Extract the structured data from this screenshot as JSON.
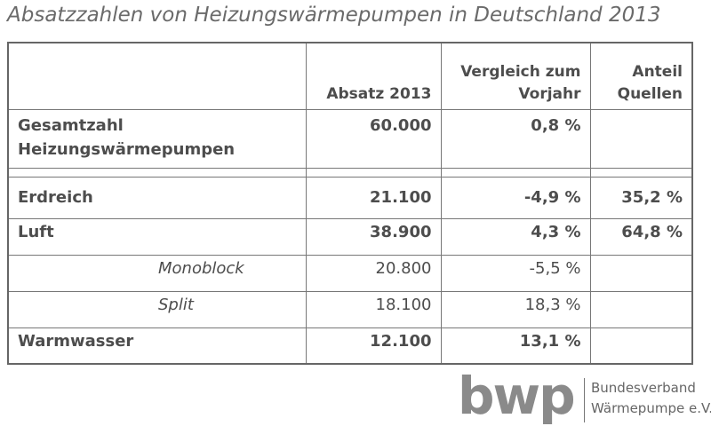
{
  "title": "Absatzzahlen von Heizungswärmepumpen in Deutschland 2013",
  "table": {
    "header": [
      "Absatz 2013",
      "Vergleich zum Vorjahr",
      "Anteil Quellen"
    ],
    "rows": [
      {
        "label": "Gesamtzahl Heizungswärmepumpen",
        "values": [
          "60.000",
          "0,8 %",
          null
        ],
        "sub": false
      },
      {
        "label": "Erdreich",
        "values": [
          "21.100",
          "-4,9 %",
          "35,2 %"
        ],
        "sub": false
      },
      {
        "label": "Luft",
        "values": [
          "38.900",
          "4,3 %",
          "64,8 %"
        ],
        "sub": false
      },
      {
        "label": "Monoblock",
        "values": [
          "20.800",
          "-5,5 %",
          null
        ],
        "sub": true
      },
      {
        "label": "Split",
        "values": [
          "18.100",
          "18,3 %",
          null
        ],
        "sub": true
      },
      {
        "label": "Warmwasser",
        "values": [
          "12.100",
          "13,1 %",
          null
        ],
        "sub": false
      }
    ]
  },
  "logo": {
    "mark": "bwp",
    "lines": [
      "Bundesverband",
      "Wärmepumpe e.V."
    ]
  }
}
